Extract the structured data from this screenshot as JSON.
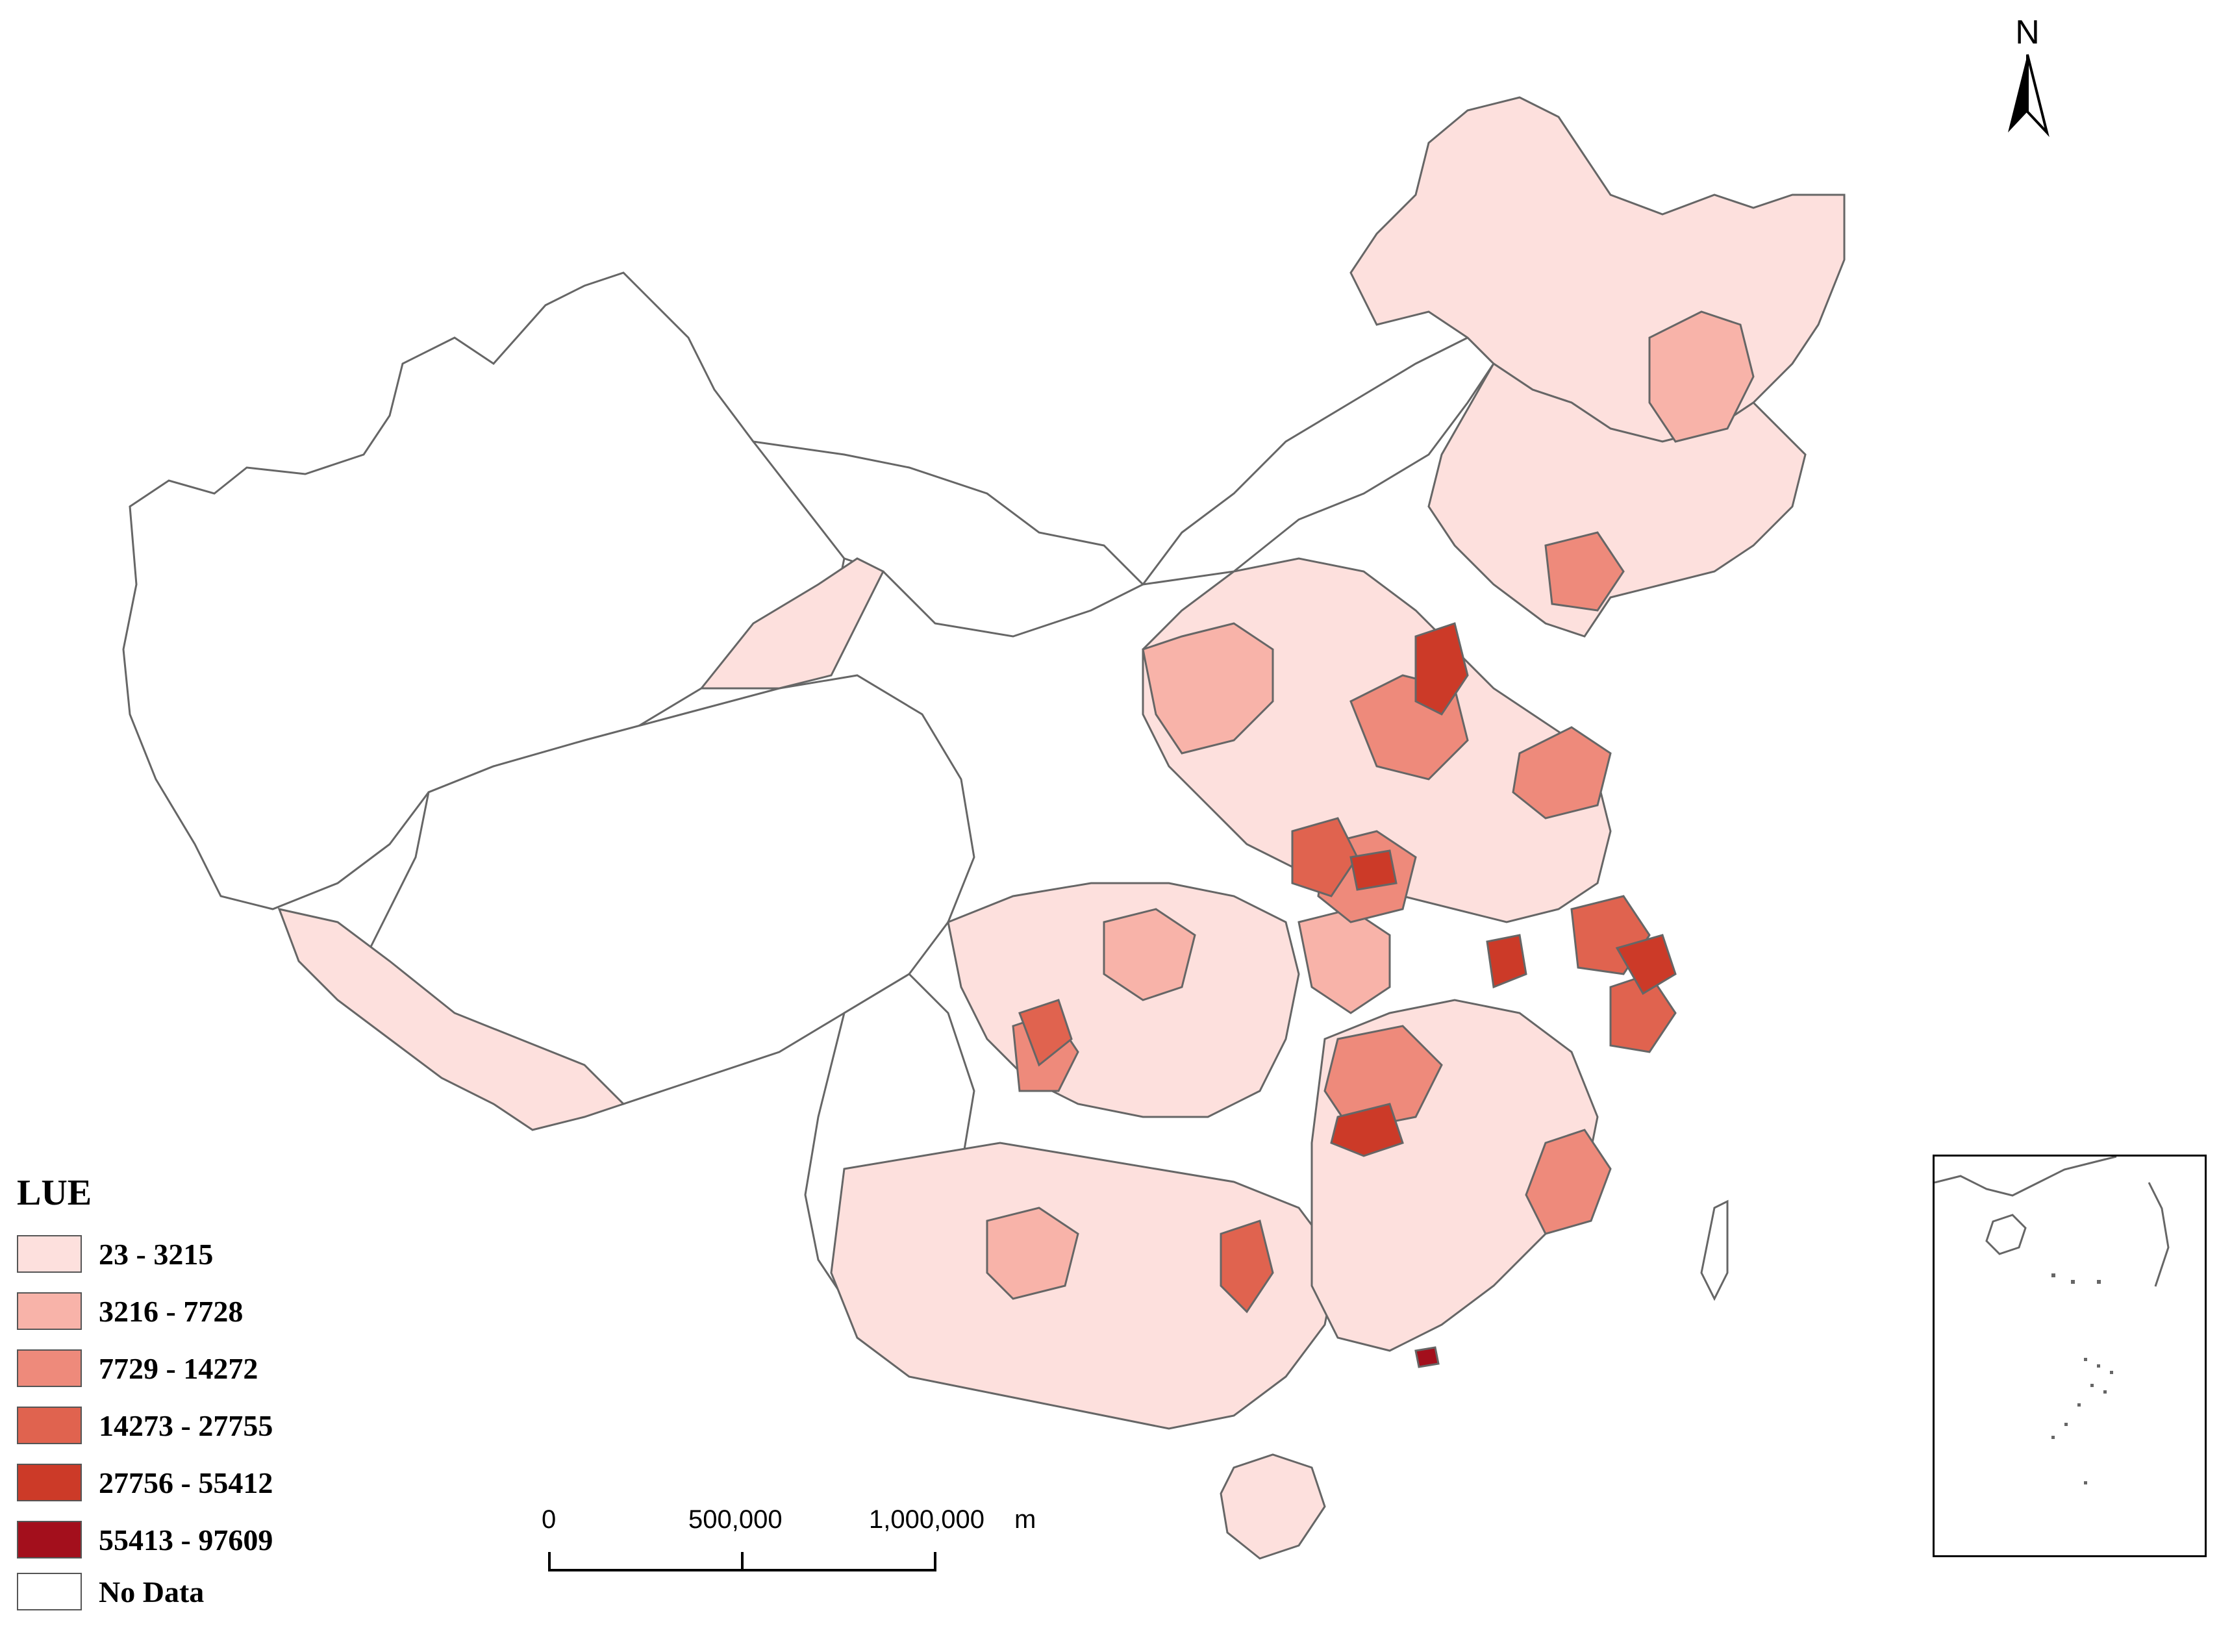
{
  "legend": {
    "title": "LUE",
    "classes": [
      {
        "label": "23 - 3215",
        "color": "#fde0dd"
      },
      {
        "label": "3216 - 7728",
        "color": "#f8b3a9"
      },
      {
        "label": "7729 - 14272",
        "color": "#ee8a7b"
      },
      {
        "label": "14273 - 27755",
        "color": "#e0634f"
      },
      {
        "label": "27756 - 55412",
        "color": "#cc3a28"
      },
      {
        "label": "55413 - 97609",
        "color": "#a30f1c"
      },
      {
        "label": "No Data",
        "color": "#ffffff"
      }
    ]
  },
  "north_arrow": {
    "label": "N"
  },
  "scale_bar": {
    "labels": [
      "0",
      "500,000",
      "1,000,000"
    ],
    "unit": "m"
  }
}
